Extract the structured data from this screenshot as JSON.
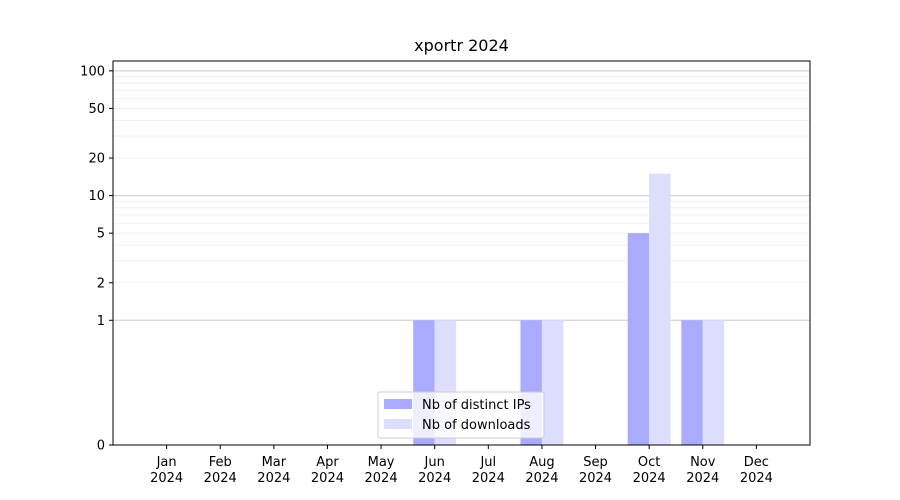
{
  "chart_data": {
    "type": "bar",
    "title": "xportr 2024",
    "xlabel": "",
    "ylabel": "",
    "categories": [
      {
        "month": "Jan",
        "year": "2024"
      },
      {
        "month": "Feb",
        "year": "2024"
      },
      {
        "month": "Mar",
        "year": "2024"
      },
      {
        "month": "Apr",
        "year": "2024"
      },
      {
        "month": "May",
        "year": "2024"
      },
      {
        "month": "Jun",
        "year": "2024"
      },
      {
        "month": "Jul",
        "year": "2024"
      },
      {
        "month": "Aug",
        "year": "2024"
      },
      {
        "month": "Sep",
        "year": "2024"
      },
      {
        "month": "Oct",
        "year": "2024"
      },
      {
        "month": "Nov",
        "year": "2024"
      },
      {
        "month": "Dec",
        "year": "2024"
      }
    ],
    "series": [
      {
        "name": "Nb of distinct IPs",
        "color": "#aaaaff",
        "values": [
          0,
          0,
          0,
          0,
          0,
          1,
          0,
          1,
          0,
          5,
          1,
          0
        ]
      },
      {
        "name": "Nb of downloads",
        "color": "#ddddff",
        "values": [
          0,
          0,
          0,
          0,
          0,
          1,
          0,
          1,
          0,
          15,
          1,
          0
        ]
      }
    ],
    "y_scale": "symlog",
    "ylim": [
      0,
      120
    ],
    "y_ticks": [
      "0",
      "1",
      "2",
      "5",
      "10",
      "20",
      "50",
      "100"
    ],
    "grid": true,
    "legend_position": "lower-center"
  }
}
